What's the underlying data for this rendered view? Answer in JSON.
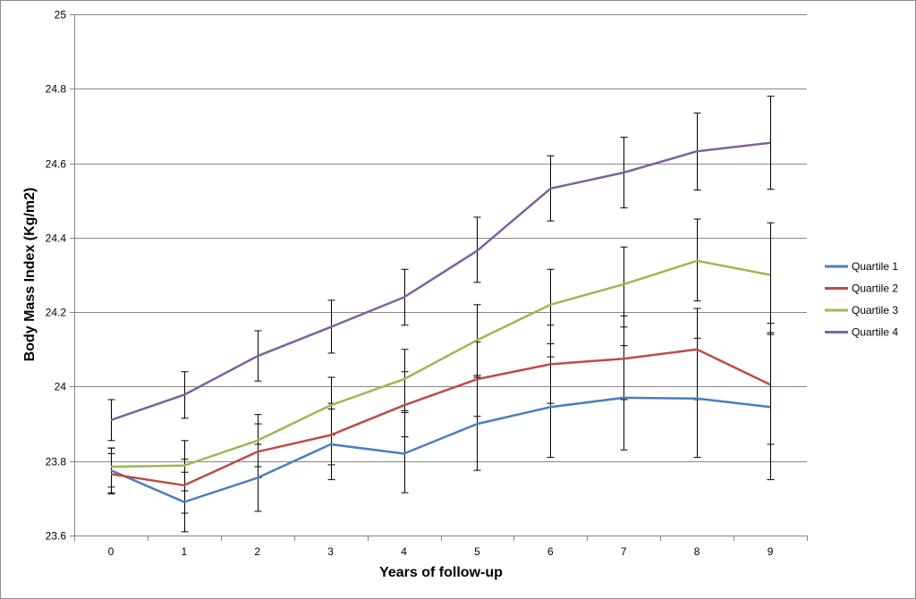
{
  "chart_data": {
    "type": "line",
    "title": "",
    "xlabel": "Years of follow-up",
    "ylabel": "Body Mass Index (Kg/m2)",
    "x": [
      0,
      1,
      2,
      3,
      4,
      5,
      6,
      7,
      8,
      9
    ],
    "ylim": [
      23.6,
      25
    ],
    "yticks": [
      23.6,
      23.8,
      24,
      24.2,
      24.4,
      24.6,
      24.8,
      25
    ],
    "ytick_labels": [
      "23.6",
      "23.8",
      "24",
      "24.2",
      "24.4",
      "24.6",
      "24.8",
      "25"
    ],
    "grid": "horizontal",
    "legend_position": "right",
    "series": [
      {
        "name": "Quartile 1",
        "color": "#4a7ebb",
        "values": [
          23.775,
          23.69,
          23.755,
          23.845,
          23.82,
          23.9,
          23.945,
          23.97,
          23.968,
          23.945
        ],
        "err_low": [
          23.715,
          23.61,
          23.665,
          23.75,
          23.715,
          23.775,
          23.81,
          23.83,
          23.81,
          23.75
        ],
        "err_high": [
          23.835,
          23.77,
          23.845,
          23.94,
          23.93,
          24.025,
          24.08,
          24.11,
          24.13,
          24.14
        ]
      },
      {
        "name": "Quartile 2",
        "color": "#be4b48",
        "values": [
          23.765,
          23.735,
          23.825,
          23.87,
          23.95,
          24.02,
          24.06,
          24.075,
          24.1,
          24.005
        ],
        "err_low": [
          23.712,
          23.66,
          23.755,
          23.79,
          23.865,
          23.92,
          23.955,
          23.965,
          23.965,
          23.845
        ],
        "err_high": [
          23.82,
          23.805,
          23.9,
          23.955,
          24.04,
          24.12,
          24.165,
          24.19,
          24.21,
          24.17
        ]
      },
      {
        "name": "Quartile 3",
        "color": "#98b954",
        "values": [
          23.785,
          23.788,
          23.855,
          23.95,
          24.02,
          24.125,
          24.22,
          24.275,
          24.338,
          24.3
        ],
        "err_low": [
          23.73,
          23.72,
          23.785,
          23.87,
          23.935,
          24.03,
          24.115,
          24.16,
          24.23,
          24.145
        ],
        "err_high": [
          23.835,
          23.855,
          23.925,
          24.025,
          24.1,
          24.22,
          24.315,
          24.375,
          24.45,
          24.44
        ]
      },
      {
        "name": "Quartile 4",
        "color": "#7d60a0",
        "values": [
          23.91,
          23.978,
          24.082,
          24.16,
          24.24,
          24.365,
          24.532,
          24.575,
          24.632,
          24.655
        ],
        "err_low": [
          23.855,
          23.915,
          24.015,
          24.09,
          24.165,
          24.28,
          24.445,
          24.48,
          24.528,
          24.53
        ],
        "err_high": [
          23.965,
          24.04,
          24.15,
          24.232,
          24.315,
          24.455,
          24.62,
          24.67,
          24.735,
          24.78
        ]
      }
    ]
  }
}
